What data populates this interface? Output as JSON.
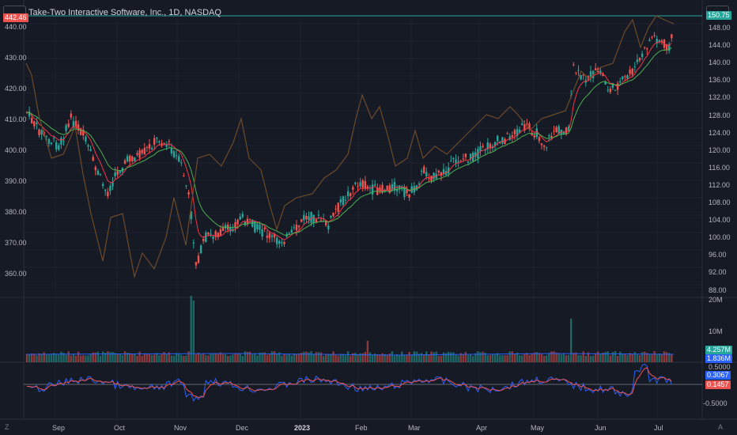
{
  "header": {
    "title": "Take-Two Interactive Software, Inc., 1D, NASDAQ",
    "left_badge": "442.46",
    "right_badge": "150.75"
  },
  "left_axis": [
    "440.00",
    "430.00",
    "420.00",
    "410.00",
    "400.00",
    "390.00",
    "380.00",
    "370.00",
    "360.00"
  ],
  "right_axis": [
    "148.00",
    "144.00",
    "140.00",
    "136.00",
    "132.00",
    "128.00",
    "124.00",
    "120.00",
    "116.00",
    "112.00",
    "108.00",
    "104.00",
    "100.00",
    "96.00",
    "92.00",
    "88.00"
  ],
  "volume_axis": {
    "top": "20M",
    "mid": "10M",
    "badge1": "4.257M",
    "badge2": "1.836M"
  },
  "osc_axis": {
    "top": "0.5000",
    "badge_blue": "0.3067",
    "badge_red": "0.1457",
    "bottom": "-0.5000"
  },
  "x_axis": [
    "Sep",
    "Oct",
    "Nov",
    "Dec",
    "2023",
    "Feb",
    "Mar",
    "Apr",
    "May",
    "Jun",
    "Jul"
  ],
  "footer": {
    "left_letter": "Z",
    "right_letter": "A"
  },
  "colors": {
    "background": "#161a25",
    "up": "#26a69a",
    "down": "#ef5350",
    "ema_fast": "#f23645",
    "ema_slow": "#4caf50",
    "overlay": "#6d4a2a",
    "osc_blue": "#2962ff",
    "osc_red": "#ef5350"
  }
}
